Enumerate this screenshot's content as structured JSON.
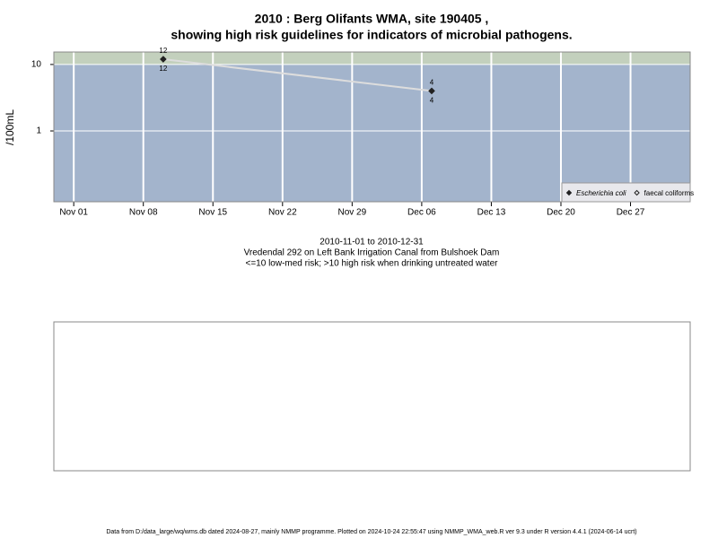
{
  "chart_data": {
    "type": "line",
    "title": [
      "2010 : Berg Olifants WMA, site 190405 ,",
      "showing high risk guidelines for indicators of microbial pathogens."
    ],
    "y_label": "/100mL",
    "x": [
      "2010-11-10",
      "2010-12-07"
    ],
    "series": [
      {
        "name": "Escherichia coli",
        "color": "#222222",
        "line_color": "#dddddd",
        "marker": "filled-diamond",
        "values": [
          12,
          4
        ]
      },
      {
        "name": "faecal coliforms",
        "color": "#222222",
        "marker": "open-diamond",
        "values": [
          12,
          4
        ]
      }
    ],
    "xlim": [
      "2010-10-30",
      "2011-01-02"
    ],
    "xticks": [
      {
        "value": "2010-11-01",
        "label": "Nov 01"
      },
      {
        "value": "2010-11-08",
        "label": "Nov 08"
      },
      {
        "value": "2010-11-15",
        "label": "Nov 15"
      },
      {
        "value": "2010-11-22",
        "label": "Nov 22"
      },
      {
        "value": "2010-11-29",
        "label": "Nov 29"
      },
      {
        "value": "2010-12-06",
        "label": "Dec 06"
      },
      {
        "value": "2010-12-13",
        "label": "Dec 13"
      },
      {
        "value": "2010-12-20",
        "label": "Dec 20"
      },
      {
        "value": "2010-12-27",
        "label": "Dec 27"
      }
    ],
    "log_scale_y": true,
    "ylim": [
      0.086,
      15.4
    ],
    "yticks": [
      1,
      10
    ],
    "threshold": 10,
    "low_color": "#a3b4cc",
    "high_color": "#c3d0bd",
    "grid": true,
    "legend": "bottom-right",
    "notes": [
      "2010-11-01 to 2010-12-31",
      "Vredendal 292 on Left Bank Irrigation Canal from Bulshoek Dam",
      "<=10 low-med risk; >10 high risk when drinking untreated water"
    ],
    "footer": "Data from D:/data_large/wq/wms.db dated 2024-08-27, mainly NMMP programme. Plotted on 2024-10-24 22:55:47 using NMMP_WMA_web.R ver 9.3 under R version 4.4.1 (2024-06-14 ucrt)"
  }
}
